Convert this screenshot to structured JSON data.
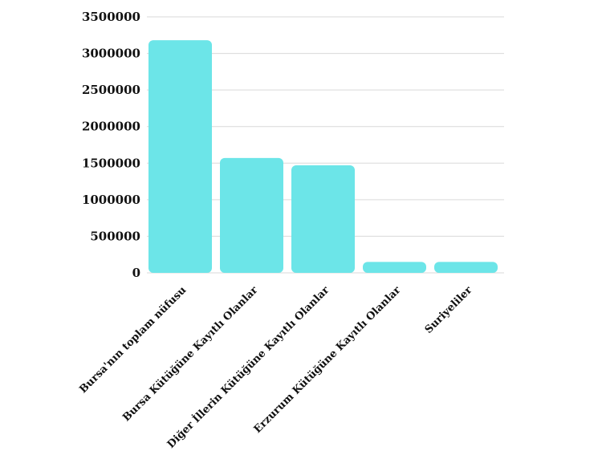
{
  "chart_data": {
    "type": "bar",
    "title": "",
    "xlabel": "",
    "ylabel": "",
    "categories": [
      "Bursa'nın toplam nüfusu",
      "Bursa Kütüğüne Kayıtlı Olanlar",
      "Diğer İllerin Kütüğüne Kayıtlı Olanlar",
      "Erzurum Kütüğüne Kayıtlı Olanlar",
      "Suriyeliler"
    ],
    "values": [
      3180000,
      1570000,
      1470000,
      150000,
      150000
    ],
    "ylim": [
      0,
      3500000
    ],
    "yticks": [
      "0",
      "500000",
      "1000000",
      "1500000",
      "2000000",
      "2500000",
      "3000000",
      "3500000"
    ],
    "grid": true,
    "legend": "none",
    "bar_color": "#6ce5e8"
  }
}
